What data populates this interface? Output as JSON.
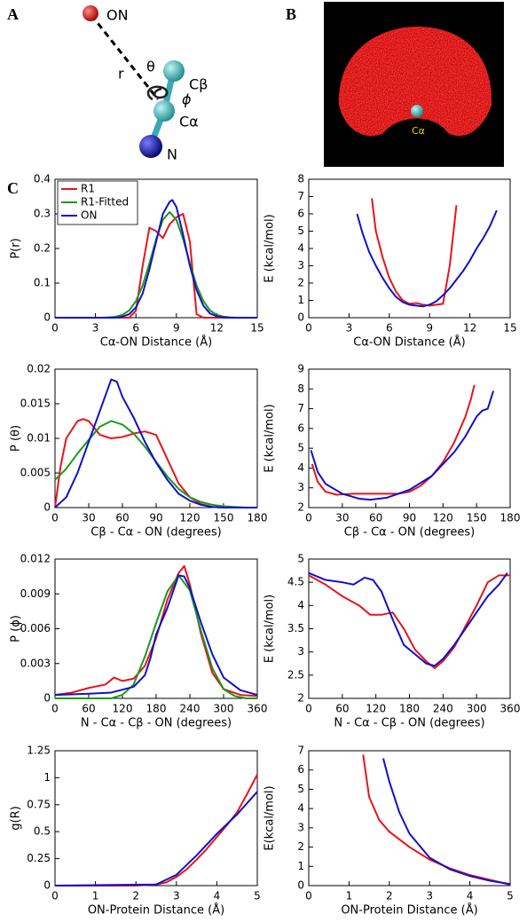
{
  "figure": {
    "panel_labels": [
      "A",
      "B",
      "C"
    ],
    "molecule_labels": {
      "on": "ON",
      "r": "r",
      "theta": "θ",
      "cb": "Cβ",
      "phi": "ϕ",
      "ca": "Cα",
      "n": "N"
    },
    "cloud_label": "Cα"
  },
  "chart_data": [
    {
      "type": "line",
      "ylabel": "P(r)",
      "xlabel": "Cα-ON Distance (Å)",
      "xlim": [
        0,
        15
      ],
      "xticks": [
        0,
        3,
        6,
        9,
        12,
        15
      ],
      "ylim": [
        0,
        0.4
      ],
      "yticks": [
        0,
        0.1,
        0.2,
        0.3,
        0.4
      ],
      "legend": "upper left",
      "series": [
        {
          "name": "R1",
          "color": "#e8141b",
          "x": [
            0,
            5.5,
            6,
            6.5,
            7,
            7.5,
            8,
            8.5,
            9,
            9.5,
            10,
            10.5,
            11,
            15
          ],
          "values": [
            0,
            0,
            0.02,
            0.15,
            0.26,
            0.25,
            0.23,
            0.27,
            0.29,
            0.3,
            0.22,
            0.01,
            0,
            0
          ]
        },
        {
          "name": "R1-Fitted",
          "color": "#1a9a1a",
          "x": [
            0,
            3.5,
            4,
            4.5,
            5,
            5.5,
            6,
            6.5,
            7,
            7.5,
            8,
            8.5,
            9,
            9.5,
            10,
            10.5,
            11,
            11.5,
            12,
            12.5,
            13,
            13.5,
            15
          ],
          "values": [
            0,
            0,
            0.001,
            0.003,
            0.008,
            0.021,
            0.048,
            0.093,
            0.157,
            0.227,
            0.283,
            0.305,
            0.283,
            0.227,
            0.157,
            0.093,
            0.048,
            0.021,
            0.008,
            0.003,
            0.001,
            0,
            0
          ]
        },
        {
          "name": "ON",
          "color": "#1010cc",
          "x": [
            0,
            4.5,
            5,
            5.5,
            6,
            6.5,
            7,
            7.5,
            8,
            8.5,
            8.7,
            9,
            9.5,
            10,
            10.5,
            11,
            11.5,
            12,
            12.5,
            13,
            15
          ],
          "values": [
            0,
            0,
            0.003,
            0.01,
            0.03,
            0.07,
            0.14,
            0.22,
            0.3,
            0.335,
            0.34,
            0.32,
            0.24,
            0.15,
            0.08,
            0.035,
            0.012,
            0.004,
            0.001,
            0,
            0
          ]
        }
      ]
    },
    {
      "type": "line",
      "ylabel": "E (kcal/mol)",
      "xlabel": "Cα-ON Distance (Å)",
      "xlim": [
        0,
        15
      ],
      "xticks": [
        0,
        3,
        6,
        9,
        12,
        15
      ],
      "ylim": [
        0,
        8
      ],
      "yticks": [
        0,
        1,
        2,
        3,
        4,
        5,
        6,
        7,
        8
      ],
      "series": [
        {
          "color": "#e8141b",
          "x": [
            4.7,
            5,
            5.5,
            6,
            6.5,
            7,
            7.5,
            8,
            8.5,
            9,
            9.5,
            10,
            10.5,
            11
          ],
          "values": [
            6.9,
            5.0,
            3.5,
            2.3,
            1.5,
            1.0,
            0.8,
            0.85,
            0.75,
            0.7,
            0.75,
            0.8,
            3.0,
            6.5
          ]
        },
        {
          "color": "#1010cc",
          "x": [
            3.6,
            4,
            4.5,
            5,
            5.5,
            6,
            6.5,
            7,
            7.5,
            8,
            8.5,
            9,
            9.5,
            10,
            10.5,
            11,
            11.5,
            12,
            12.5,
            13,
            13.5,
            14
          ],
          "values": [
            6.0,
            4.9,
            3.8,
            3.0,
            2.3,
            1.7,
            1.2,
            0.9,
            0.75,
            0.7,
            0.65,
            0.75,
            0.95,
            1.3,
            1.7,
            2.2,
            2.7,
            3.3,
            4.0,
            4.6,
            5.3,
            6.2
          ]
        }
      ]
    },
    {
      "type": "line",
      "ylabel": "P (θ)",
      "xlabel": "Cβ - Cα - ON (degrees)",
      "xlim": [
        0,
        180
      ],
      "xticks": [
        0,
        30,
        60,
        90,
        120,
        150,
        180
      ],
      "ylim": [
        0,
        0.02
      ],
      "yticks": [
        0,
        0.005,
        0.01,
        0.015,
        0.02
      ],
      "series": [
        {
          "color": "#e8141b",
          "x": [
            0,
            5,
            10,
            20,
            25,
            30,
            40,
            50,
            60,
            70,
            80,
            90,
            100,
            110,
            120,
            130,
            140,
            150,
            180
          ],
          "values": [
            0,
            0.006,
            0.01,
            0.0125,
            0.0128,
            0.0125,
            0.0105,
            0.01,
            0.0102,
            0.0107,
            0.011,
            0.0105,
            0.007,
            0.0035,
            0.0015,
            0.0005,
            0.0001,
            0,
            0
          ]
        },
        {
          "color": "#1a9a1a",
          "x": [
            0,
            10,
            20,
            30,
            40,
            50,
            60,
            70,
            80,
            90,
            100,
            110,
            120,
            130,
            140,
            150,
            160,
            170,
            180
          ],
          "values": [
            0.004,
            0.0056,
            0.0078,
            0.0098,
            0.0117,
            0.0125,
            0.012,
            0.0107,
            0.0088,
            0.0066,
            0.0045,
            0.0027,
            0.0015,
            0.0008,
            0.0004,
            0.0002,
            0.0001,
            0,
            0
          ]
        },
        {
          "color": "#1010cc",
          "x": [
            0,
            10,
            20,
            30,
            40,
            50,
            55,
            60,
            70,
            80,
            90,
            100,
            110,
            120,
            130,
            140,
            150,
            180
          ],
          "values": [
            0,
            0.0015,
            0.005,
            0.0095,
            0.014,
            0.0185,
            0.0182,
            0.016,
            0.013,
            0.0095,
            0.0065,
            0.004,
            0.002,
            0.001,
            0.0004,
            0.0001,
            0,
            0
          ]
        }
      ]
    },
    {
      "type": "line",
      "ylabel": "E (kcal/mol)",
      "xlabel": "Cβ - Cα - ON (degrees)",
      "xlim": [
        0,
        180
      ],
      "xticks": [
        0,
        30,
        60,
        90,
        120,
        150,
        180
      ],
      "ylim": [
        2,
        9
      ],
      "yticks": [
        2,
        3,
        4,
        5,
        6,
        7,
        8,
        9
      ],
      "series": [
        {
          "color": "#e8141b",
          "x": [
            3,
            8,
            15,
            25,
            40,
            60,
            80,
            90,
            100,
            110,
            120,
            130,
            140,
            145,
            148
          ],
          "values": [
            4.2,
            3.3,
            2.8,
            2.65,
            2.7,
            2.7,
            2.7,
            2.8,
            3.1,
            3.6,
            4.3,
            5.3,
            6.6,
            7.5,
            8.2
          ]
        },
        {
          "color": "#1010cc",
          "x": [
            2,
            8,
            15,
            30,
            45,
            55,
            70,
            90,
            110,
            120,
            130,
            140,
            150,
            155,
            160,
            165
          ],
          "values": [
            4.9,
            3.8,
            3.2,
            2.7,
            2.45,
            2.4,
            2.5,
            2.9,
            3.6,
            4.2,
            4.8,
            5.6,
            6.6,
            6.9,
            7.0,
            7.9
          ]
        }
      ]
    },
    {
      "type": "line",
      "ylabel": "P (ϕ)",
      "xlabel": "N - Cα - Cβ - ON (degrees)",
      "xlim": [
        0,
        360
      ],
      "xticks": [
        0,
        60,
        120,
        180,
        240,
        300,
        360
      ],
      "ylim": [
        0,
        0.012
      ],
      "yticks": [
        0,
        0.003,
        0.006,
        0.009,
        0.012
      ],
      "series": [
        {
          "color": "#e8141b",
          "x": [
            0,
            30,
            60,
            90,
            105,
            120,
            140,
            160,
            180,
            200,
            220,
            230,
            240,
            260,
            280,
            300,
            330,
            360
          ],
          "values": [
            0.0003,
            0.0005,
            0.0009,
            0.0012,
            0.0018,
            0.0015,
            0.0017,
            0.0028,
            0.0052,
            0.0085,
            0.0108,
            0.0114,
            0.0098,
            0.0055,
            0.0022,
            0.0008,
            0.0003,
            0.0002
          ]
        },
        {
          "color": "#1a9a1a",
          "x": [
            0,
            100,
            120,
            140,
            160,
            180,
            200,
            220,
            240,
            260,
            280,
            300,
            320,
            340,
            360
          ],
          "values": [
            0,
            0,
            0.0003,
            0.0012,
            0.0036,
            0.0065,
            0.0092,
            0.0106,
            0.0093,
            0.0058,
            0.0026,
            0.0008,
            0.0002,
            0,
            0
          ]
        },
        {
          "color": "#1010cc",
          "x": [
            0,
            60,
            100,
            140,
            160,
            170,
            180,
            200,
            220,
            230,
            240,
            260,
            280,
            300,
            330,
            360
          ],
          "values": [
            0.0003,
            0.0004,
            0.0005,
            0.001,
            0.002,
            0.0035,
            0.0055,
            0.0078,
            0.0106,
            0.0105,
            0.0095,
            0.0065,
            0.0038,
            0.0018,
            0.0007,
            0.0003
          ]
        }
      ]
    },
    {
      "type": "line",
      "ylabel": "E (kcal/mol)",
      "xlabel": "N - Cα - Cβ - ON (degrees)",
      "xlim": [
        0,
        360
      ],
      "xticks": [
        0,
        60,
        120,
        180,
        240,
        300,
        360
      ],
      "ylim": [
        2,
        5
      ],
      "yticks": [
        2,
        2.5,
        3,
        3.5,
        4,
        4.5,
        5
      ],
      "series": [
        {
          "color": "#e8141b",
          "x": [
            0,
            30,
            60,
            90,
            110,
            130,
            150,
            170,
            190,
            210,
            225,
            240,
            260,
            280,
            300,
            320,
            340,
            360
          ],
          "values": [
            4.65,
            4.45,
            4.2,
            4.0,
            3.8,
            3.8,
            3.85,
            3.5,
            3.05,
            2.8,
            2.65,
            2.8,
            3.1,
            3.55,
            4.0,
            4.5,
            4.65,
            4.65
          ]
        },
        {
          "color": "#1010cc",
          "x": [
            0,
            30,
            60,
            80,
            100,
            115,
            130,
            150,
            170,
            190,
            210,
            225,
            240,
            260,
            280,
            300,
            320,
            340,
            355
          ],
          "values": [
            4.7,
            4.55,
            4.5,
            4.45,
            4.6,
            4.55,
            4.3,
            3.7,
            3.15,
            2.95,
            2.75,
            2.7,
            2.85,
            3.15,
            3.5,
            3.85,
            4.2,
            4.45,
            4.7
          ]
        }
      ]
    },
    {
      "type": "line",
      "ylabel": "g(R)",
      "xlabel": "ON-Protein Distance (Å)",
      "xlim": [
        0,
        5
      ],
      "xticks": [
        0,
        1,
        2,
        3,
        4,
        5
      ],
      "ylim": [
        0,
        1.25
      ],
      "yticks": [
        0,
        0.25,
        0.5,
        0.75,
        1,
        1.25
      ],
      "series": [
        {
          "color": "#e8141b",
          "x": [
            0,
            2,
            2.5,
            2.75,
            3,
            3.25,
            3.5,
            3.75,
            4,
            4.25,
            4.5,
            4.75,
            5
          ],
          "values": [
            0,
            0,
            0.01,
            0.03,
            0.08,
            0.15,
            0.24,
            0.34,
            0.45,
            0.56,
            0.68,
            0.85,
            1.03
          ]
        },
        {
          "color": "#1010cc",
          "x": [
            0,
            2.5,
            3,
            3.5,
            4,
            4.5,
            5
          ],
          "values": [
            0,
            0.01,
            0.1,
            0.28,
            0.48,
            0.66,
            0.87
          ]
        }
      ]
    },
    {
      "type": "line",
      "ylabel": "E(kcal/mol)",
      "xlabel": "ON-Protein Distance (Å)",
      "xlim": [
        0,
        5
      ],
      "xticks": [
        0,
        1,
        2,
        3,
        4,
        5
      ],
      "ylim": [
        0,
        7
      ],
      "yticks": [
        0,
        1,
        2,
        3,
        4,
        5,
        6,
        7
      ],
      "series": [
        {
          "color": "#e8141b",
          "x": [
            1.35,
            1.5,
            1.75,
            2,
            2.5,
            3,
            3.5,
            4,
            4.5,
            5
          ],
          "values": [
            6.8,
            4.6,
            3.4,
            2.8,
            2.0,
            1.35,
            0.9,
            0.55,
            0.3,
            0.05
          ]
        },
        {
          "color": "#1010cc",
          "x": [
            1.85,
            2,
            2.25,
            2.5,
            3,
            3.5,
            4,
            4.5,
            5
          ],
          "values": [
            6.6,
            5.4,
            3.8,
            2.7,
            1.45,
            0.85,
            0.5,
            0.25,
            0.08
          ]
        }
      ]
    }
  ]
}
